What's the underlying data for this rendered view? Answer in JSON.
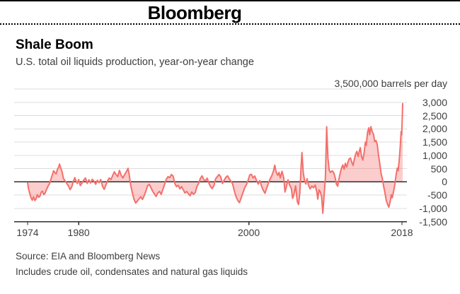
{
  "header": {
    "brand": "Bloomberg"
  },
  "chart": {
    "title": "Shale Boom",
    "subtitle": "U.S. total oil liquids production, year-on-year change",
    "unit_label": "3,500,000 barrels per day"
  },
  "footer": {
    "source": "Source: EIA and Bloomberg News",
    "note": "Includes crude oil, condensates and natural gas liquids"
  },
  "colors": {
    "line": "#f3706c",
    "fill": "rgba(244,113,110,0.35)",
    "grid": "#dcdcdc",
    "axis": "#2e2e2e",
    "text": "#3d3d3d"
  },
  "chart_data": {
    "type": "area",
    "title": "Shale Boom",
    "subtitle": "U.S. total oil liquids production, year-on-year change",
    "unit_label": "3,500,000 barrels per day",
    "units": "thousand barrels per day, year-on-year change",
    "ylim": [
      -1500,
      3500
    ],
    "grid_step": 500,
    "grid": true,
    "legend": "none",
    "y_ticks": [
      {
        "value": 3000,
        "label": "3,000"
      },
      {
        "value": 2500,
        "label": "2,500"
      },
      {
        "value": 2000,
        "label": "2,000"
      },
      {
        "value": 1500,
        "label": "1,500"
      },
      {
        "value": 1000,
        "label": "1,000"
      },
      {
        "value": 500,
        "label": "500"
      },
      {
        "value": 0,
        "label": "0"
      },
      {
        "value": -500,
        "label": "-500"
      },
      {
        "value": -1000,
        "label": "-1,000"
      },
      {
        "value": -1500,
        "label": "-1,500"
      }
    ],
    "x_ticks": [
      {
        "year": 1974,
        "label": "1974"
      },
      {
        "year": 1980,
        "label": "1980"
      },
      {
        "year": 2000,
        "label": "2000"
      },
      {
        "year": 2018,
        "label": "2018"
      }
    ],
    "xlim": [
      1974,
      2018.6
    ],
    "points": [
      [
        1974.0,
        -30
      ],
      [
        1974.1,
        -250
      ],
      [
        1974.25,
        -430
      ],
      [
        1974.4,
        -600
      ],
      [
        1974.55,
        -690
      ],
      [
        1974.7,
        -560
      ],
      [
        1974.85,
        -700
      ],
      [
        1975.0,
        -640
      ],
      [
        1975.15,
        -480
      ],
      [
        1975.3,
        -580
      ],
      [
        1975.45,
        -540
      ],
      [
        1975.6,
        -390
      ],
      [
        1975.75,
        -350
      ],
      [
        1975.9,
        -480
      ],
      [
        1976.05,
        -430
      ],
      [
        1976.2,
        -300
      ],
      [
        1976.4,
        -160
      ],
      [
        1976.6,
        -50
      ],
      [
        1976.75,
        120
      ],
      [
        1976.9,
        260
      ],
      [
        1977.05,
        420
      ],
      [
        1977.2,
        350
      ],
      [
        1977.35,
        300
      ],
      [
        1977.5,
        470
      ],
      [
        1977.65,
        560
      ],
      [
        1977.75,
        670
      ],
      [
        1977.9,
        520
      ],
      [
        1978.05,
        380
      ],
      [
        1978.2,
        140
      ],
      [
        1978.4,
        40
      ],
      [
        1978.6,
        -60
      ],
      [
        1978.8,
        -150
      ],
      [
        1979.0,
        -290
      ],
      [
        1979.2,
        -180
      ],
      [
        1979.4,
        40
      ],
      [
        1979.55,
        160
      ],
      [
        1979.7,
        30
      ],
      [
        1979.85,
        -60
      ],
      [
        1980.0,
        90
      ],
      [
        1980.2,
        -140
      ],
      [
        1980.4,
        -40
      ],
      [
        1980.6,
        70
      ],
      [
        1980.8,
        150
      ],
      [
        1981.0,
        -60
      ],
      [
        1981.2,
        80
      ],
      [
        1981.4,
        -40
      ],
      [
        1981.6,
        100
      ],
      [
        1981.8,
        20
      ],
      [
        1982.0,
        -90
      ],
      [
        1982.2,
        60
      ],
      [
        1982.4,
        -30
      ],
      [
        1982.6,
        90
      ],
      [
        1982.8,
        -160
      ],
      [
        1983.0,
        -280
      ],
      [
        1983.2,
        -120
      ],
      [
        1983.4,
        40
      ],
      [
        1983.6,
        150
      ],
      [
        1983.8,
        90
      ],
      [
        1984.0,
        240
      ],
      [
        1984.2,
        380
      ],
      [
        1984.4,
        280
      ],
      [
        1984.6,
        200
      ],
      [
        1984.8,
        430
      ],
      [
        1985.0,
        250
      ],
      [
        1985.2,
        150
      ],
      [
        1985.4,
        280
      ],
      [
        1985.6,
        380
      ],
      [
        1985.8,
        510
      ],
      [
        1985.95,
        250
      ],
      [
        1986.1,
        -100
      ],
      [
        1986.3,
        -400
      ],
      [
        1986.5,
        -650
      ],
      [
        1986.7,
        -800
      ],
      [
        1986.9,
        -720
      ],
      [
        1987.1,
        -640
      ],
      [
        1987.3,
        -560
      ],
      [
        1987.5,
        -660
      ],
      [
        1987.7,
        -520
      ],
      [
        1987.9,
        -350
      ],
      [
        1988.1,
        -150
      ],
      [
        1988.3,
        -90
      ],
      [
        1988.5,
        -220
      ],
      [
        1988.7,
        -350
      ],
      [
        1988.9,
        -450
      ],
      [
        1989.1,
        -550
      ],
      [
        1989.3,
        -420
      ],
      [
        1989.5,
        -360
      ],
      [
        1989.7,
        -470
      ],
      [
        1989.9,
        -280
      ],
      [
        1990.1,
        -90
      ],
      [
        1990.3,
        100
      ],
      [
        1990.5,
        200
      ],
      [
        1990.7,
        160
      ],
      [
        1990.9,
        280
      ],
      [
        1991.1,
        220
      ],
      [
        1991.3,
        -60
      ],
      [
        1991.5,
        -180
      ],
      [
        1991.7,
        -130
      ],
      [
        1991.9,
        -260
      ],
      [
        1992.1,
        -180
      ],
      [
        1992.3,
        -300
      ],
      [
        1992.5,
        -420
      ],
      [
        1992.7,
        -360
      ],
      [
        1992.9,
        -450
      ],
      [
        1993.1,
        -520
      ],
      [
        1993.3,
        -380
      ],
      [
        1993.5,
        -470
      ],
      [
        1993.7,
        -410
      ],
      [
        1993.9,
        -170
      ],
      [
        1994.1,
        -60
      ],
      [
        1994.3,
        130
      ],
      [
        1994.5,
        230
      ],
      [
        1994.7,
        90
      ],
      [
        1994.9,
        40
      ],
      [
        1995.1,
        140
      ],
      [
        1995.3,
        -40
      ],
      [
        1995.5,
        -180
      ],
      [
        1995.7,
        -250
      ],
      [
        1995.9,
        -140
      ],
      [
        1996.1,
        120
      ],
      [
        1996.3,
        200
      ],
      [
        1996.5,
        280
      ],
      [
        1996.7,
        190
      ],
      [
        1996.9,
        -60
      ],
      [
        1997.1,
        60
      ],
      [
        1997.3,
        170
      ],
      [
        1997.5,
        230
      ],
      [
        1997.7,
        120
      ],
      [
        1997.9,
        30
      ],
      [
        1998.1,
        -80
      ],
      [
        1998.3,
        -350
      ],
      [
        1998.5,
        -560
      ],
      [
        1998.7,
        -700
      ],
      [
        1998.9,
        -780
      ],
      [
        1999.1,
        -600
      ],
      [
        1999.3,
        -420
      ],
      [
        1999.5,
        -230
      ],
      [
        1999.7,
        -120
      ],
      [
        1999.9,
        40
      ],
      [
        2000.1,
        260
      ],
      [
        2000.3,
        290
      ],
      [
        2000.5,
        150
      ],
      [
        2000.7,
        220
      ],
      [
        2000.9,
        60
      ],
      [
        2001.1,
        -80
      ],
      [
        2001.3,
        50
      ],
      [
        2001.5,
        -160
      ],
      [
        2001.7,
        -320
      ],
      [
        2001.9,
        -430
      ],
      [
        2002.1,
        -240
      ],
      [
        2002.3,
        -60
      ],
      [
        2002.5,
        110
      ],
      [
        2002.7,
        240
      ],
      [
        2002.9,
        420
      ],
      [
        2003.05,
        630
      ],
      [
        2003.2,
        380
      ],
      [
        2003.4,
        250
      ],
      [
        2003.55,
        360
      ],
      [
        2003.7,
        150
      ],
      [
        2003.9,
        400
      ],
      [
        2004.1,
        150
      ],
      [
        2004.25,
        -380
      ],
      [
        2004.4,
        -200
      ],
      [
        2004.6,
        80
      ],
      [
        2004.8,
        -120
      ],
      [
        2005.0,
        -250
      ],
      [
        2005.15,
        -620
      ],
      [
        2005.3,
        -480
      ],
      [
        2005.5,
        -150
      ],
      [
        2005.7,
        -740
      ],
      [
        2005.85,
        -850
      ],
      [
        2006.0,
        -400
      ],
      [
        2006.15,
        600
      ],
      [
        2006.25,
        1110
      ],
      [
        2006.4,
        350
      ],
      [
        2006.55,
        60
      ],
      [
        2006.7,
        -80
      ],
      [
        2006.85,
        120
      ],
      [
        2007.0,
        -120
      ],
      [
        2007.2,
        -260
      ],
      [
        2007.4,
        -160
      ],
      [
        2007.6,
        -220
      ],
      [
        2007.8,
        -120
      ],
      [
        2008.0,
        -400
      ],
      [
        2008.1,
        -650
      ],
      [
        2008.25,
        -300
      ],
      [
        2008.4,
        -380
      ],
      [
        2008.55,
        -550
      ],
      [
        2008.7,
        -1180
      ],
      [
        2008.85,
        -500
      ],
      [
        2009.0,
        150
      ],
      [
        2009.15,
        2080
      ],
      [
        2009.3,
        900
      ],
      [
        2009.45,
        430
      ],
      [
        2009.6,
        360
      ],
      [
        2009.8,
        420
      ],
      [
        2010.0,
        330
      ],
      [
        2010.15,
        160
      ],
      [
        2010.3,
        -90
      ],
      [
        2010.45,
        -160
      ],
      [
        2010.6,
        120
      ],
      [
        2010.75,
        340
      ],
      [
        2010.9,
        520
      ],
      [
        2011.05,
        640
      ],
      [
        2011.2,
        480
      ],
      [
        2011.35,
        700
      ],
      [
        2011.5,
        560
      ],
      [
        2011.65,
        750
      ],
      [
        2011.8,
        870
      ],
      [
        2011.95,
        900
      ],
      [
        2012.1,
        740
      ],
      [
        2012.25,
        620
      ],
      [
        2012.4,
        850
      ],
      [
        2012.55,
        1050
      ],
      [
        2012.7,
        1150
      ],
      [
        2012.85,
        960
      ],
      [
        2013.0,
        1180
      ],
      [
        2013.1,
        1290
      ],
      [
        2013.25,
        950
      ],
      [
        2013.4,
        820
      ],
      [
        2013.55,
        1100
      ],
      [
        2013.7,
        1500
      ],
      [
        2013.8,
        1380
      ],
      [
        2013.95,
        1860
      ],
      [
        2014.1,
        2040
      ],
      [
        2014.2,
        1780
      ],
      [
        2014.35,
        2080
      ],
      [
        2014.5,
        1900
      ],
      [
        2014.65,
        1800
      ],
      [
        2014.8,
        1520
      ],
      [
        2014.95,
        1560
      ],
      [
        2015.1,
        1400
      ],
      [
        2015.25,
        1000
      ],
      [
        2015.4,
        680
      ],
      [
        2015.55,
        320
      ],
      [
        2015.7,
        120
      ],
      [
        2015.85,
        -180
      ],
      [
        2016.0,
        -420
      ],
      [
        2016.15,
        -700
      ],
      [
        2016.3,
        -840
      ],
      [
        2016.45,
        -950
      ],
      [
        2016.6,
        -760
      ],
      [
        2016.75,
        -480
      ],
      [
        2016.85,
        -600
      ],
      [
        2017.0,
        -380
      ],
      [
        2017.15,
        -120
      ],
      [
        2017.3,
        250
      ],
      [
        2017.45,
        520
      ],
      [
        2017.55,
        420
      ],
      [
        2017.7,
        900
      ],
      [
        2017.8,
        1350
      ],
      [
        2017.9,
        1900
      ],
      [
        2017.97,
        1780
      ],
      [
        2018.03,
        2400
      ],
      [
        2018.08,
        2950
      ]
    ]
  }
}
